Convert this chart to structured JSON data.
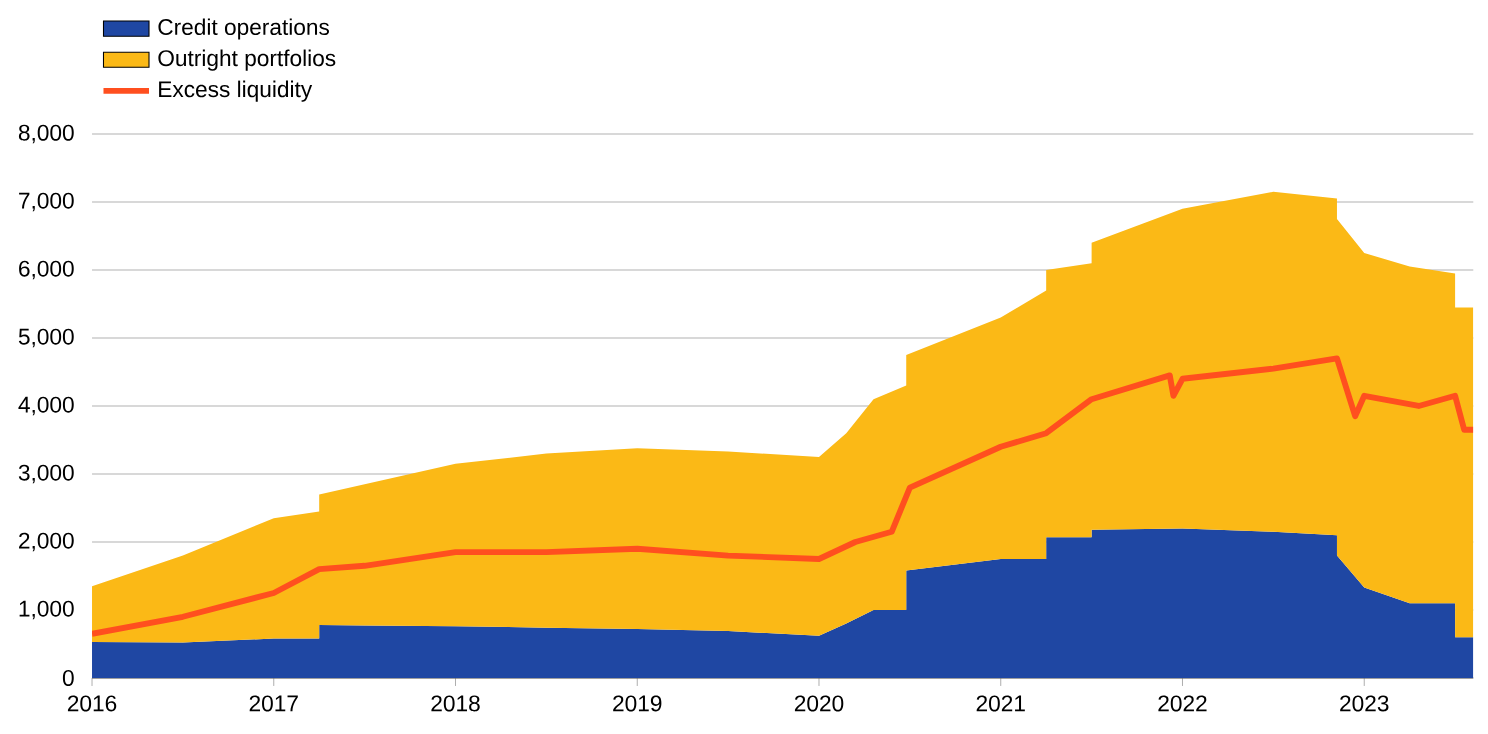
{
  "chart_data": {
    "type": "area",
    "stacked": true,
    "x": [
      2016.0,
      2016.5,
      2017.0,
      2017.25,
      2017.25,
      2017.5,
      2018.0,
      2018.5,
      2019.0,
      2019.5,
      2020.0,
      2020.15,
      2020.3,
      2020.48,
      2020.48,
      2021.0,
      2021.25,
      2021.25,
      2021.5,
      2021.5,
      2022.0,
      2022.5,
      2022.85,
      2022.85,
      2023.0,
      2023.25,
      2023.5,
      2023.5,
      2023.6
    ],
    "series": [
      {
        "name": "Credit operations",
        "color": "#1f47a3",
        "values": [
          530,
          520,
          580,
          580,
          780,
          770,
          760,
          740,
          720,
          690,
          620,
          800,
          1000,
          1000,
          1580,
          1750,
          1750,
          2070,
          2070,
          2180,
          2200,
          2150,
          2100,
          1800,
          1330,
          1100,
          1100,
          600,
          600
        ]
      },
      {
        "name": "Outright portfolios",
        "color": "#fbb916",
        "values": [
          820,
          1280,
          1770,
          1870,
          1920,
          2080,
          2390,
          2560,
          2660,
          2640,
          2630,
          2800,
          3100,
          3300,
          3170,
          3550,
          3950,
          3930,
          4030,
          4220,
          4700,
          5000,
          4950,
          4950,
          4920,
          4950,
          4850,
          4850,
          4850
        ]
      },
      {
        "name": "Excess liquidity",
        "type": "line",
        "color": "#ff4f1f",
        "x": [
          2016.0,
          2016.5,
          2017.0,
          2017.25,
          2017.5,
          2018.0,
          2018.5,
          2019.0,
          2019.5,
          2020.0,
          2020.2,
          2020.4,
          2020.5,
          2021.0,
          2021.25,
          2021.5,
          2021.93,
          2021.95,
          2022.0,
          2022.5,
          2022.85,
          2022.95,
          2023.0,
          2023.3,
          2023.5,
          2023.55,
          2023.6
        ],
        "values": [
          650,
          900,
          1250,
          1600,
          1650,
          1850,
          1850,
          1900,
          1800,
          1750,
          2000,
          2150,
          2800,
          3400,
          3600,
          4100,
          4450,
          4150,
          4400,
          4550,
          4700,
          3850,
          4150,
          4000,
          4150,
          3650,
          3650
        ]
      }
    ],
    "xlim": [
      2016,
      2023.6
    ],
    "xticks": [
      2016,
      2017,
      2018,
      2019,
      2020,
      2021,
      2022,
      2023
    ],
    "ylim": [
      0,
      8000
    ],
    "yticks": [
      0,
      {
        "value": 1000,
        "label": "1,000"
      },
      {
        "value": 2000,
        "label": "2,000"
      },
      {
        "value": 3000,
        "label": "3,000"
      },
      {
        "value": 4000,
        "label": "4,000"
      },
      {
        "value": 5000,
        "label": "5,000"
      },
      {
        "value": 6000,
        "label": "6,000"
      },
      {
        "value": 7000,
        "label": "7,000"
      },
      {
        "value": 8000,
        "label": "8,000"
      }
    ],
    "grid": "y",
    "legend": "top left"
  }
}
